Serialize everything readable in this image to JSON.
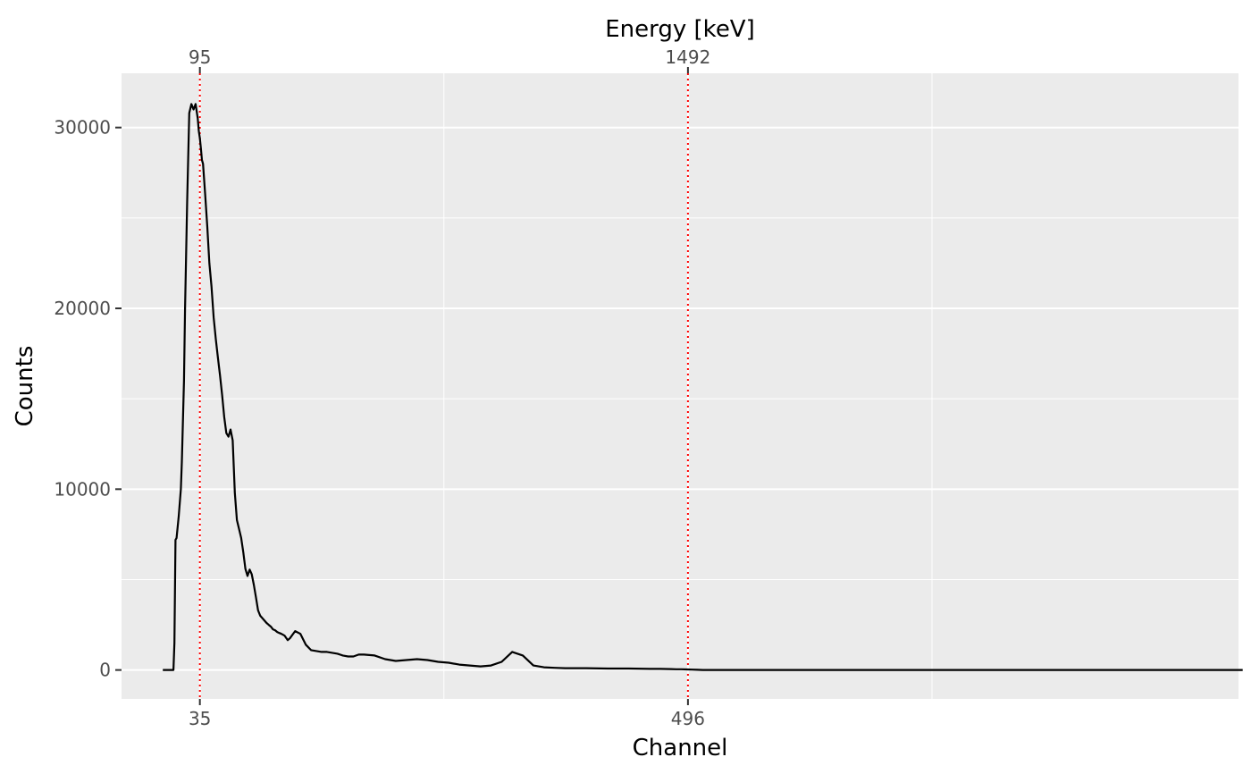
{
  "chart_data": {
    "type": "line",
    "title": "",
    "xlabel": "Channel",
    "ylabel": "Counts",
    "secondary_xlabel": "Energy [keV]",
    "xlim": [
      -39,
      1016
    ],
    "ylim": [
      -1600,
      33000
    ],
    "grid": true,
    "legend": "none",
    "colors": {
      "panel": "#ebebeb",
      "grid": "#ffffff",
      "line": "#000000",
      "marker_line": "#ff0000",
      "tick_text": "#4d4d4d"
    },
    "y_ticks": [
      0,
      10000,
      20000,
      30000
    ],
    "y_tick_labels": [
      "0",
      "10000",
      "20000",
      "30000"
    ],
    "x_ticks": [
      35,
      496
    ],
    "x_tick_labels": [
      "35",
      "496"
    ],
    "x2_ticks": [
      35,
      496
    ],
    "x2_tick_labels": [
      "95",
      "1492"
    ],
    "vlines": [
      35,
      496
    ],
    "series": [
      {
        "name": "",
        "x": [
          0,
          10,
          11,
          12,
          13,
          15,
          17,
          18,
          20,
          21,
          23,
          25,
          27,
          29,
          31,
          33,
          34,
          35,
          36,
          37,
          38,
          40,
          42,
          44,
          46,
          48,
          50,
          52,
          54,
          56,
          58,
          60,
          62,
          64,
          66,
          68,
          70,
          72,
          74,
          76,
          78,
          80,
          82,
          84,
          86,
          88,
          90,
          92,
          95,
          98,
          100,
          102,
          104,
          106,
          108,
          110,
          112,
          115,
          118,
          120,
          125,
          130,
          135,
          140,
          145,
          150,
          155,
          160,
          165,
          170,
          175,
          180,
          185,
          190,
          200,
          210,
          220,
          230,
          240,
          250,
          260,
          270,
          280,
          290,
          300,
          310,
          320,
          330,
          340,
          350,
          360,
          370,
          380,
          390,
          400,
          420,
          440,
          460,
          470,
          480,
          485,
          490,
          495,
          500,
          505,
          510,
          515,
          520,
          530,
          550,
          600,
          650,
          700,
          750,
          800,
          850,
          900,
          920,
          930,
          940,
          950,
          960,
          980,
          1000,
          1020
        ],
        "values": [
          0,
          0,
          1500,
          7200,
          7300,
          8500,
          10000,
          11500,
          16000,
          20000,
          26000,
          30800,
          31300,
          31000,
          31300,
          30500,
          29800,
          29400,
          28800,
          28200,
          28000,
          26300,
          24500,
          22500,
          21200,
          19500,
          18300,
          17300,
          16300,
          15200,
          14000,
          13100,
          12900,
          13300,
          12700,
          9800,
          8300,
          7800,
          7300,
          6500,
          5600,
          5200,
          5550,
          5300,
          4700,
          4000,
          3300,
          3000,
          2800,
          2600,
          2500,
          2400,
          2250,
          2200,
          2100,
          2050,
          2000,
          1900,
          1650,
          1750,
          2150,
          2000,
          1400,
          1100,
          1050,
          1000,
          1000,
          950,
          900,
          800,
          750,
          750,
          850,
          850,
          800,
          600,
          500,
          550,
          600,
          550,
          450,
          400,
          300,
          250,
          200,
          250,
          450,
          1000,
          800,
          250,
          150,
          120,
          100,
          100,
          100,
          80,
          80,
          60,
          60,
          50,
          40,
          40,
          30,
          20,
          10,
          0,
          0,
          0,
          0,
          0,
          0,
          0,
          0,
          0,
          0,
          0,
          0,
          0,
          0,
          0,
          0,
          0,
          0,
          0,
          0
        ]
      }
    ]
  }
}
